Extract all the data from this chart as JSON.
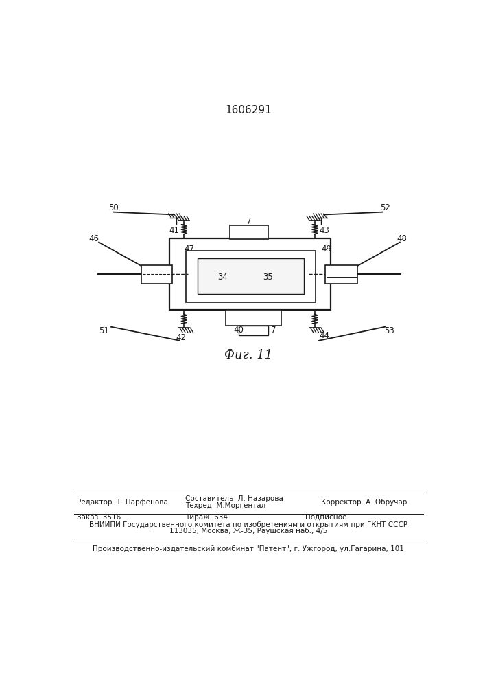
{
  "title": "1606291",
  "fig_caption": "Фиг. 11",
  "footer_r1c1": "Редактор  Т. Парфенова",
  "footer_r1c2a": "Составитель  Л. Назарова",
  "footer_r1c2b": "Техред  М.Моргентал",
  "footer_r1c3": "Корректор  А. Обручар",
  "footer_r2c1": "Заказ  3516",
  "footer_r2c2": "Тираж  634",
  "footer_r2c3": "Подписное",
  "footer_r3": "ВНИИПИ Государственного комитета по изобретениям и открытиям при ГКНТ СССР",
  "footer_r4": "113035, Москва, Ж-35, Раушская наб., 4/5",
  "footer_r5": "Производственно-издательский комбинат \"Патент\", г. Ужгород, ул.Гагарина, 101",
  "bg_color": "#ffffff",
  "line_color": "#1a1a1a"
}
